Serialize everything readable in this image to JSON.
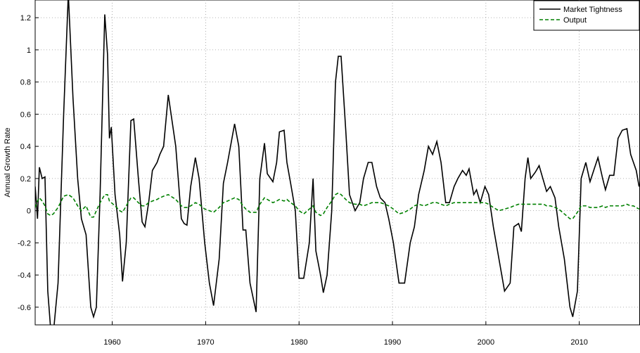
{
  "chart_data": {
    "type": "line",
    "ylabel": "Annual Growth Rate",
    "xlim": [
      1951.75,
      2016.5
    ],
    "ylim": [
      -0.71,
      1.31
    ],
    "xticks": [
      1960,
      1970,
      1980,
      1990,
      2000,
      2010
    ],
    "yticks": [
      -0.6,
      -0.4,
      -0.2,
      0,
      0.2,
      0.4,
      0.6,
      0.8,
      1,
      1.2
    ],
    "grid": true,
    "legend": "upper right",
    "x": [
      1951.75,
      1952.0,
      1952.2,
      1952.5,
      1952.8,
      1953.1,
      1953.4,
      1953.7,
      1954.2,
      1954.8,
      1955.3,
      1955.8,
      1956.3,
      1956.7,
      1957.2,
      1957.7,
      1958.0,
      1958.3,
      1958.7,
      1959.2,
      1959.5,
      1959.7,
      1959.9,
      1960.3,
      1960.8,
      1961.1,
      1961.5,
      1962.0,
      1962.3,
      1962.8,
      1963.2,
      1963.5,
      1963.9,
      1964.3,
      1964.8,
      1965.1,
      1965.5,
      1966.0,
      1966.8,
      1967.4,
      1967.7,
      1968.0,
      1968.4,
      1968.9,
      1969.3,
      1969.9,
      1970.4,
      1970.85,
      1971.45,
      1971.9,
      1972.35,
      1973.1,
      1973.55,
      1974.0,
      1974.3,
      1974.75,
      1975.4,
      1975.8,
      1976.3,
      1976.6,
      1977.2,
      1977.6,
      1977.9,
      1978.4,
      1978.7,
      1979.1,
      1979.6,
      1980.0,
      1980.5,
      1981.1,
      1981.5,
      1981.8,
      1982.3,
      1982.6,
      1983.0,
      1983.5,
      1983.9,
      1984.2,
      1984.5,
      1985.0,
      1985.4,
      1986.0,
      1986.5,
      1986.9,
      1987.4,
      1987.8,
      1988.3,
      1988.7,
      1989.2,
      1989.6,
      1990.1,
      1990.7,
      1991.3,
      1991.9,
      1992.35,
      1992.8,
      1993.4,
      1993.85,
      1994.3,
      1994.75,
      1995.2,
      1995.7,
      1996.1,
      1996.6,
      1997.0,
      1997.5,
      1997.9,
      1998.2,
      1998.7,
      1999.0,
      1999.4,
      1999.9,
      2000.3,
      2000.8,
      2001.4,
      2002.0,
      2002.6,
      2003.0,
      2003.5,
      2003.8,
      2004.2,
      2004.5,
      2004.8,
      2005.3,
      2005.7,
      2006.2,
      2006.5,
      2006.9,
      2007.4,
      2007.8,
      2008.4,
      2009.0,
      2009.3,
      2009.8,
      2010.2,
      2010.7,
      2011.15,
      2011.6,
      2012.0,
      2012.5,
      2012.8,
      2013.25,
      2013.7,
      2014.15,
      2014.6,
      2015.1,
      2015.5,
      2015.8,
      2016.1,
      2016.4
    ],
    "series": [
      {
        "name": "Market Tightness",
        "color": "#000000",
        "line_style": "solid",
        "values": [
          0.15,
          -0.05,
          0.27,
          0.2,
          0.21,
          -0.5,
          -0.73,
          -0.76,
          -0.45,
          0.6,
          1.35,
          0.7,
          0.2,
          -0.05,
          -0.15,
          -0.6,
          -0.66,
          -0.6,
          0.1,
          1.22,
          0.97,
          0.45,
          0.52,
          0.1,
          -0.15,
          -0.44,
          -0.2,
          0.56,
          0.57,
          0.2,
          -0.07,
          -0.1,
          0.05,
          0.25,
          0.3,
          0.35,
          0.4,
          0.72,
          0.4,
          -0.05,
          -0.08,
          -0.09,
          0.15,
          0.33,
          0.2,
          -0.2,
          -0.45,
          -0.59,
          -0.3,
          0.17,
          0.3,
          0.54,
          0.4,
          -0.12,
          -0.12,
          -0.45,
          -0.63,
          0.2,
          0.42,
          0.23,
          0.18,
          0.3,
          0.49,
          0.5,
          0.3,
          0.17,
          0.0,
          -0.42,
          -0.42,
          -0.2,
          0.2,
          -0.25,
          -0.4,
          -0.51,
          -0.4,
          0.0,
          0.8,
          0.96,
          0.96,
          0.5,
          0.1,
          0.0,
          0.05,
          0.2,
          0.3,
          0.3,
          0.15,
          0.08,
          0.05,
          -0.05,
          -0.2,
          -0.45,
          -0.45,
          -0.2,
          -0.1,
          0.1,
          0.25,
          0.4,
          0.35,
          0.43,
          0.3,
          0.05,
          0.05,
          0.15,
          0.2,
          0.25,
          0.22,
          0.26,
          0.1,
          0.13,
          0.05,
          0.15,
          0.1,
          -0.1,
          -0.3,
          -0.5,
          -0.45,
          -0.1,
          -0.08,
          -0.13,
          0.2,
          0.33,
          0.2,
          0.24,
          0.28,
          0.18,
          0.12,
          0.15,
          0.08,
          -0.1,
          -0.3,
          -0.6,
          -0.66,
          -0.5,
          0.2,
          0.3,
          0.18,
          0.26,
          0.33,
          0.2,
          0.13,
          0.22,
          0.22,
          0.45,
          0.5,
          0.51,
          0.35,
          0.3,
          0.25,
          0.15
        ]
      },
      {
        "name": "Output",
        "color": "#008000",
        "line_style": "dashed",
        "values": [
          0.02,
          0.06,
          0.08,
          0.06,
          0.03,
          -0.02,
          -0.03,
          -0.02,
          0.02,
          0.09,
          0.1,
          0.08,
          0.03,
          0.0,
          0.03,
          -0.04,
          -0.04,
          0.0,
          0.05,
          0.1,
          0.1,
          0.06,
          0.05,
          0.03,
          0.0,
          -0.01,
          0.03,
          0.08,
          0.08,
          0.05,
          0.03,
          0.03,
          0.05,
          0.06,
          0.07,
          0.08,
          0.09,
          0.1,
          0.07,
          0.03,
          0.02,
          0.02,
          0.03,
          0.05,
          0.04,
          0.01,
          0.0,
          -0.01,
          0.02,
          0.05,
          0.06,
          0.08,
          0.07,
          0.03,
          0.01,
          -0.01,
          -0.01,
          0.04,
          0.08,
          0.07,
          0.05,
          0.06,
          0.07,
          0.06,
          0.07,
          0.05,
          0.03,
          0.0,
          -0.02,
          0.01,
          0.03,
          -0.01,
          -0.03,
          -0.02,
          0.02,
          0.06,
          0.1,
          0.11,
          0.1,
          0.07,
          0.05,
          0.04,
          0.04,
          0.03,
          0.04,
          0.05,
          0.05,
          0.05,
          0.04,
          0.03,
          0.01,
          -0.02,
          -0.01,
          0.01,
          0.03,
          0.04,
          0.03,
          0.04,
          0.05,
          0.05,
          0.04,
          0.03,
          0.04,
          0.05,
          0.05,
          0.05,
          0.05,
          0.05,
          0.05,
          0.05,
          0.05,
          0.05,
          0.04,
          0.02,
          0.0,
          0.01,
          0.02,
          0.03,
          0.04,
          0.04,
          0.04,
          0.04,
          0.04,
          0.04,
          0.04,
          0.04,
          0.03,
          0.03,
          0.02,
          0.01,
          -0.02,
          -0.05,
          -0.05,
          -0.01,
          0.03,
          0.03,
          0.02,
          0.02,
          0.02,
          0.03,
          0.02,
          0.03,
          0.03,
          0.03,
          0.03,
          0.04,
          0.03,
          0.03,
          0.02,
          0.01
        ]
      }
    ]
  }
}
